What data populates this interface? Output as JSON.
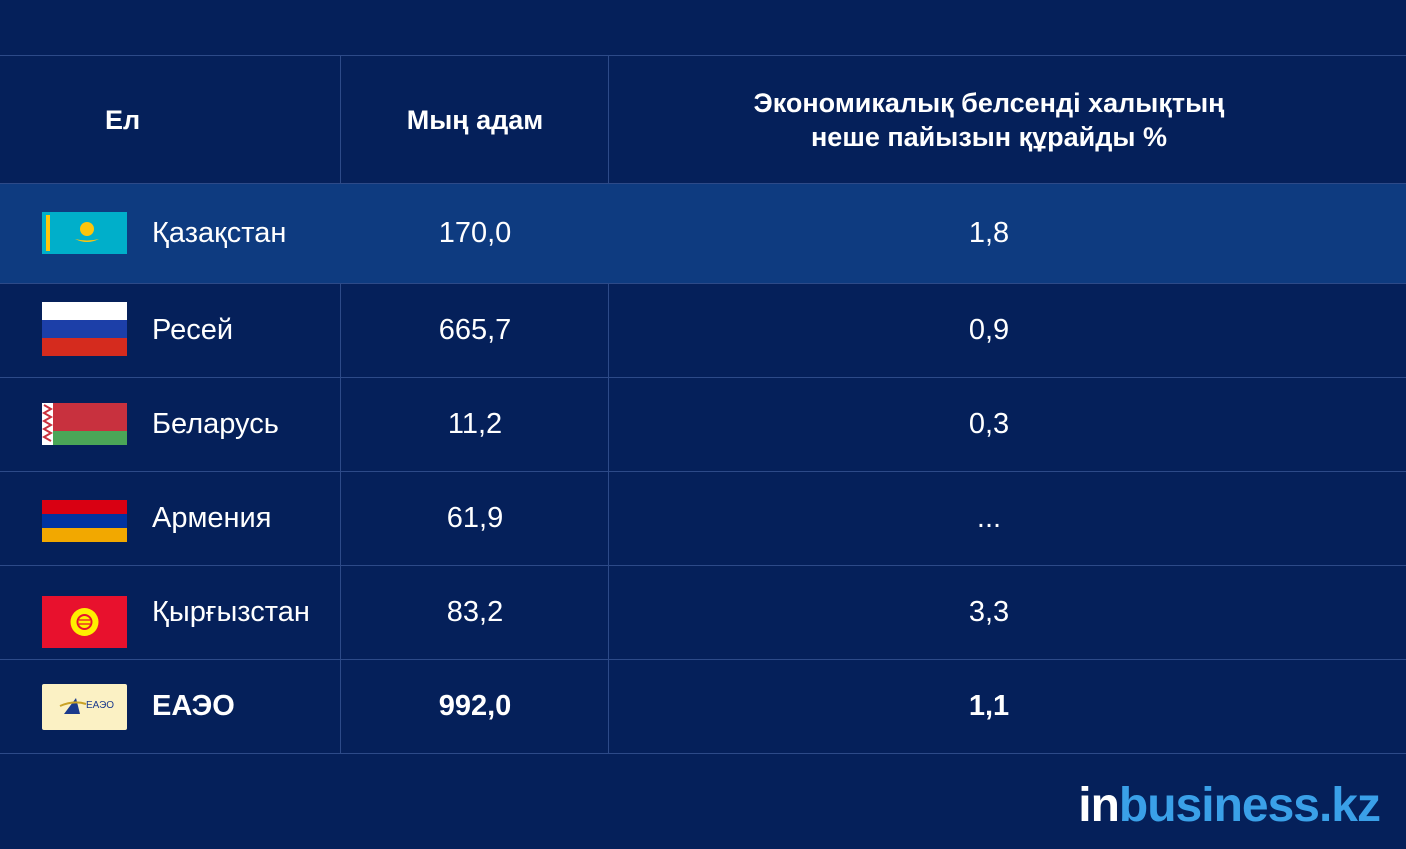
{
  "header": {
    "col1": "Ел",
    "col2": "Мың адам",
    "col3_line1": "Экономикалық белсенді халықтың",
    "col3_line2": "неше пайызын құрайды %"
  },
  "rows": [
    {
      "country": "Қазақстан",
      "thousand_people": "170,0",
      "percent": "1,8",
      "flag": "kazakhstan-flag",
      "highlight": true
    },
    {
      "country": "Ресей",
      "thousand_people": "665,7",
      "percent": "0,9",
      "flag": "russia-flag"
    },
    {
      "country": "Беларусь",
      "thousand_people": "11,2",
      "percent": "0,3",
      "flag": "belarus-flag"
    },
    {
      "country": "Армения",
      "thousand_people": "61,9",
      "percent": "...",
      "flag": "armenia-flag"
    },
    {
      "country": "Қырғызстан",
      "thousand_people": "83,2",
      "percent": "3,3",
      "flag": "kyrgyzstan-flag"
    },
    {
      "country": "ЕАЭО",
      "thousand_people": "992,0",
      "percent": "1,1",
      "flag": "eaeu-logo",
      "bold": true
    }
  ],
  "logo_text": "ЕАЭО",
  "brand": {
    "part1": "in",
    "part2": "business.kz"
  },
  "colors": {
    "background": "#05205a",
    "highlight_row": "#0e3b80",
    "brand_accent": "#3aa0e8"
  },
  "chart_data": {
    "type": "table",
    "columns": [
      "Ел",
      "Мың адам",
      "Экономикалық белсенді халықтың неше пайызын құрайды %"
    ],
    "rows": [
      [
        "Қазақстан",
        170.0,
        1.8
      ],
      [
        "Ресей",
        665.7,
        0.9
      ],
      [
        "Беларусь",
        11.2,
        0.3
      ],
      [
        "Армения",
        61.9,
        null
      ],
      [
        "Қырғызстан",
        83.2,
        3.3
      ],
      [
        "ЕАЭО",
        992.0,
        1.1
      ]
    ]
  }
}
